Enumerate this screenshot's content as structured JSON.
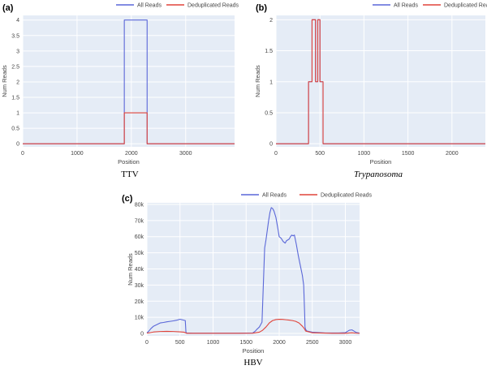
{
  "chart_data": [
    {
      "type": "line",
      "panel_label": "(a)",
      "caption": "TTV",
      "caption_italic": false,
      "xlabel": "Position",
      "ylabel": "Num Reads",
      "xlim": [
        0,
        3900
      ],
      "ylim": [
        -0.1,
        4.15
      ],
      "xticks": [
        0,
        1000,
        2000,
        3000
      ],
      "xtick_labels": [
        "0",
        "1000",
        "2000",
        "3000"
      ],
      "yticks": [
        0,
        0.5,
        1,
        1.5,
        2,
        2.5,
        3,
        3.5,
        4
      ],
      "ytick_labels": [
        "0",
        "0.5",
        "1",
        "1.5",
        "2",
        "2.5",
        "3",
        "3.5",
        "4"
      ],
      "legend": "top",
      "grid": true,
      "series": [
        {
          "name": "All Reads",
          "color": "#5a67d8",
          "x": [
            0,
            1870,
            1870,
            2290,
            2290,
            3900
          ],
          "y": [
            0,
            0,
            4,
            4,
            0,
            0
          ]
        },
        {
          "name": "Deduplicated Reads",
          "color": "#e0443a",
          "x": [
            0,
            1870,
            1870,
            2290,
            2290,
            3900
          ],
          "y": [
            0,
            0,
            1,
            1,
            0,
            0
          ]
        }
      ]
    },
    {
      "type": "line",
      "panel_label": "(b)",
      "caption": "Trypanosoma",
      "caption_italic": true,
      "xlabel": "Position",
      "ylabel": "Num Reads",
      "xlim": [
        0,
        2380
      ],
      "ylim": [
        -0.05,
        2.07
      ],
      "xticks": [
        0,
        500,
        1000,
        1500,
        2000
      ],
      "xtick_labels": [
        "0",
        "500",
        "1000",
        "1500",
        "2000"
      ],
      "yticks": [
        0,
        0.5,
        1,
        1.5,
        2
      ],
      "ytick_labels": [
        "0",
        "0.5",
        "1",
        "1.5",
        "2"
      ],
      "legend": "top",
      "grid": true,
      "series": [
        {
          "name": "All Reads",
          "color": "#5a67d8",
          "x": [
            0,
            370,
            370,
            410,
            410,
            450,
            450,
            475,
            475,
            500,
            500,
            535,
            535,
            555,
            555,
            2380
          ],
          "y": [
            0,
            0,
            1,
            1,
            2,
            2,
            1,
            1,
            2,
            2,
            1,
            1,
            0,
            0,
            0,
            0
          ]
        },
        {
          "name": "Deduplicated Reads",
          "color": "#e0443a",
          "x": [
            0,
            370,
            370,
            410,
            410,
            450,
            450,
            475,
            475,
            500,
            500,
            535,
            535,
            555,
            555,
            2380
          ],
          "y": [
            0,
            0,
            1,
            1,
            2,
            2,
            1,
            1,
            2,
            2,
            1,
            1,
            0,
            0,
            0,
            0
          ]
        }
      ]
    },
    {
      "type": "line",
      "panel_label": "(c)",
      "caption": "HBV",
      "caption_italic": false,
      "xlabel": "Position",
      "ylabel": "Num Reads",
      "xlim": [
        0,
        3215
      ],
      "ylim": [
        -1500,
        81000
      ],
      "xticks": [
        0,
        500,
        1000,
        1500,
        2000,
        2500,
        3000
      ],
      "xtick_labels": [
        "0",
        "500",
        "1000",
        "1500",
        "2000",
        "2500",
        "3000"
      ],
      "yticks": [
        0,
        10000,
        20000,
        30000,
        40000,
        50000,
        60000,
        70000,
        80000
      ],
      "ytick_labels": [
        "0",
        "10k",
        "20k",
        "30k",
        "40k",
        "50k",
        "60k",
        "70k",
        "80k"
      ],
      "legend": "top",
      "grid": true,
      "series": [
        {
          "name": "All Reads",
          "color": "#5a67d8",
          "x": [
            0,
            30,
            60,
            100,
            150,
            200,
            250,
            300,
            350,
            400,
            450,
            500,
            550,
            580,
            590,
            600,
            700,
            800,
            1000,
            1200,
            1400,
            1600,
            1640,
            1660,
            1680,
            1700,
            1720,
            1740,
            1760,
            1780,
            1800,
            1820,
            1840,
            1860,
            1880,
            1900,
            1920,
            1950,
            1980,
            2000,
            2030,
            2060,
            2090,
            2110,
            2130,
            2150,
            2170,
            2190,
            2210,
            2230,
            2260,
            2290,
            2320,
            2350,
            2370,
            2385,
            2390,
            2400,
            2420,
            2500,
            2700,
            2900,
            3000,
            3040,
            3060,
            3100,
            3130,
            3160,
            3215
          ],
          "y": [
            300,
            1500,
            3000,
            4500,
            5500,
            6500,
            6800,
            7200,
            7500,
            7800,
            8200,
            8800,
            8300,
            8000,
            800,
            300,
            200,
            200,
            200,
            200,
            200,
            300,
            1500,
            2500,
            3200,
            4000,
            5500,
            7000,
            30000,
            53000,
            58000,
            64000,
            70000,
            75000,
            78000,
            77500,
            76000,
            72000,
            65000,
            60000,
            59000,
            57000,
            56000,
            57500,
            58000,
            58500,
            60000,
            61000,
            60500,
            61000,
            55000,
            48000,
            42000,
            36000,
            30000,
            12000,
            4000,
            2500,
            1500,
            800,
            300,
            300,
            500,
            1500,
            2000,
            2200,
            1500,
            700,
            200
          ]
        },
        {
          "name": "Deduplicated Reads",
          "color": "#e0443a",
          "x": [
            0,
            50,
            100,
            200,
            300,
            400,
            500,
            560,
            590,
            600,
            800,
            1000,
            1200,
            1400,
            1600,
            1700,
            1750,
            1800,
            1850,
            1900,
            1950,
            2000,
            2050,
            2100,
            2150,
            2200,
            2250,
            2300,
            2350,
            2380,
            2400,
            2500,
            2800,
            3000,
            3060,
            3100,
            3150,
            3215
          ],
          "y": [
            200,
            500,
            900,
            1200,
            1300,
            1200,
            1000,
            800,
            300,
            100,
            100,
            100,
            100,
            100,
            150,
            800,
            2000,
            4000,
            6500,
            8000,
            8600,
            8800,
            8700,
            8500,
            8300,
            8000,
            7500,
            6500,
            4500,
            3000,
            1500,
            400,
            100,
            100,
            300,
            400,
            200,
            100
          ]
        }
      ]
    }
  ],
  "legend_labels": {
    "all": "All Reads",
    "dedup": "Deduplicated Reads"
  }
}
